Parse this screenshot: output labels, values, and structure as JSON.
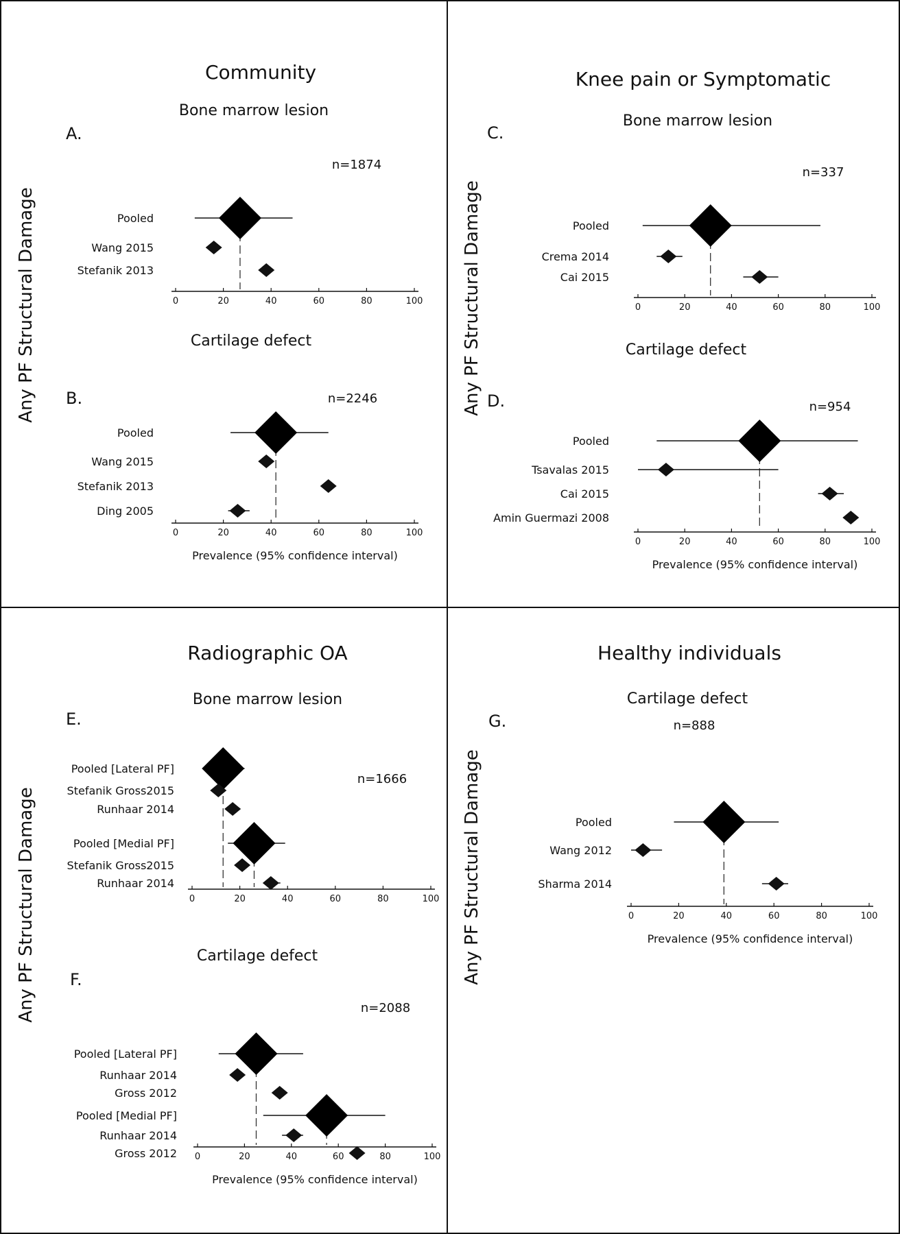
{
  "panels": [
    {
      "title": "Community",
      "ylabel": "Any PF Structural Damage"
    },
    {
      "title": "Knee pain or Symptomatic",
      "ylabel": "Any PF Structural Damage"
    },
    {
      "title": "Radiographic OA",
      "ylabel": "Any PF Structural Damage"
    },
    {
      "title": "Healthy individuals",
      "ylabel": "Any PF Structural Damage"
    }
  ],
  "chart_data": [
    {
      "type": "forest",
      "letter": "A.",
      "title": "Bone marrow lesion",
      "n_label": "n=1874",
      "xlabel": "",
      "xlim": [
        0,
        100
      ],
      "xticks": [
        "0",
        "20",
        "40",
        "60",
        "80",
        "100"
      ],
      "rows": [
        {
          "label": "Pooled",
          "estimate": 27,
          "low": 8,
          "high": 49,
          "pooled": true
        },
        {
          "label": "Wang 2015",
          "estimate": 16
        },
        {
          "label": "Stefanik 2013",
          "estimate": 38
        }
      ]
    },
    {
      "type": "forest",
      "letter": "B.",
      "title": "Cartilage defect",
      "n_label": "n=2246",
      "xlabel": "Prevalence (95% confidence interval)",
      "xlim": [
        0,
        100
      ],
      "xticks": [
        "0",
        "20",
        "40",
        "60",
        "80",
        "100"
      ],
      "rows": [
        {
          "label": "Pooled",
          "estimate": 42,
          "low": 23,
          "high": 64,
          "pooled": true
        },
        {
          "label": "Wang 2015",
          "estimate": 38
        },
        {
          "label": "Stefanik 2013",
          "estimate": 64
        },
        {
          "label": "Ding 2005",
          "estimate": 26,
          "low": 22,
          "high": 31
        }
      ]
    },
    {
      "type": "forest",
      "letter": "C.",
      "title": "Bone marrow lesion",
      "n_label": "n=337",
      "xlabel": "",
      "xlim": [
        0,
        100
      ],
      "xticks": [
        "0",
        "20",
        "40",
        "60",
        "80",
        "100"
      ],
      "rows": [
        {
          "label": "Pooled",
          "estimate": 31,
          "low": 2,
          "high": 78,
          "pooled": true
        },
        {
          "label": "Crema 2014",
          "estimate": 13,
          "low": 8,
          "high": 19
        },
        {
          "label": "Cai 2015",
          "estimate": 52,
          "low": 45,
          "high": 60
        }
      ]
    },
    {
      "type": "forest",
      "letter": "D.",
      "title": "Cartilage defect",
      "n_label": "n=954",
      "xlabel": "Prevalence (95% confidence interval)",
      "xlim": [
        0,
        100
      ],
      "xticks": [
        "0",
        "20",
        "40",
        "60",
        "80",
        "100"
      ],
      "rows": [
        {
          "label": "Pooled",
          "estimate": 52,
          "low": 8,
          "high": 94,
          "pooled": true
        },
        {
          "label": "Tsavalas 2015",
          "estimate": 12,
          "low": 0,
          "high": 60
        },
        {
          "label": "Cai 2015",
          "estimate": 82,
          "low": 77,
          "high": 88
        },
        {
          "label": "Amin Guermazi 2008",
          "estimate": 91
        }
      ]
    },
    {
      "type": "forest",
      "letter": "E.",
      "title": "Bone marrow lesion",
      "n_label": "n=1666",
      "xlabel": "",
      "xlim": [
        0,
        100
      ],
      "xticks": [
        "0",
        "20",
        "40",
        "60",
        "80",
        "100"
      ],
      "rows": [
        {
          "label": "Pooled [Lateral PF]",
          "estimate": 13,
          "low": 5,
          "high": 22,
          "pooled": true
        },
        {
          "label": "Stefanik Gross2015",
          "estimate": 11
        },
        {
          "label": "Runhaar 2014",
          "estimate": 17
        },
        {
          "label": "Pooled [Medial PF]",
          "estimate": 26,
          "low": 15,
          "high": 39,
          "pooled": true
        },
        {
          "label": "Stefanik Gross2015",
          "estimate": 21
        },
        {
          "label": "Runhaar 2014",
          "estimate": 33,
          "low": 30,
          "high": 37
        }
      ]
    },
    {
      "type": "forest",
      "letter": "F.",
      "title": "Cartilage defect",
      "n_label": "n=2088",
      "xlabel": "Prevalence (95% confidence interval)",
      "xlim": [
        0,
        100
      ],
      "xticks": [
        "0",
        "20",
        "40",
        "60",
        "80",
        "100"
      ],
      "rows": [
        {
          "label": "Pooled [Lateral PF]",
          "estimate": 25,
          "low": 9,
          "high": 45,
          "pooled": true
        },
        {
          "label": "Runhaar 2014",
          "estimate": 17
        },
        {
          "label": "Gross 2012",
          "estimate": 35
        },
        {
          "label": "Pooled [Medial PF]",
          "estimate": 55,
          "low": 28,
          "high": 80,
          "pooled": true
        },
        {
          "label": "Runhaar 2014",
          "estimate": 41,
          "low": 36,
          "high": 45
        },
        {
          "label": "Gross 2012",
          "estimate": 68
        }
      ]
    },
    {
      "type": "forest",
      "letter": "G.",
      "title": "Cartilage defect",
      "n_label": "n=888",
      "xlabel": "Prevalence (95% confidence interval)",
      "xlim": [
        0,
        100
      ],
      "xticks": [
        "0",
        "20",
        "40",
        "60",
        "80",
        "100"
      ],
      "rows": [
        {
          "label": "Pooled",
          "estimate": 39,
          "low": 18,
          "high": 62,
          "pooled": true
        },
        {
          "label": "Wang 2012",
          "estimate": 5,
          "low": 0,
          "high": 13
        },
        {
          "label": "Sharma 2014",
          "estimate": 61,
          "low": 55,
          "high": 66
        }
      ]
    }
  ]
}
